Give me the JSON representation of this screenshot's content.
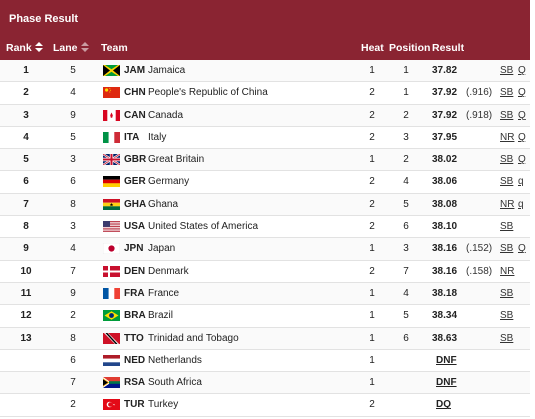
{
  "title": "Phase Result",
  "headers": {
    "rank": "Rank",
    "lane": "Lane",
    "team": "Team",
    "heat": "Heat",
    "position": "Position",
    "result": "Result"
  },
  "rows": [
    {
      "rank": "1",
      "lane": "5",
      "code": "JAM",
      "name": "Jamaica",
      "heat": "1",
      "pos": "1",
      "time": "37.82",
      "tie": "",
      "rec": "SB",
      "q": "Q",
      "flag": "jam"
    },
    {
      "rank": "2",
      "lane": "4",
      "code": "CHN",
      "name": "People's Republic of China",
      "heat": "2",
      "pos": "1",
      "time": "37.92",
      "tie": "(.916)",
      "rec": "SB",
      "q": "Q",
      "flag": "chn"
    },
    {
      "rank": "3",
      "lane": "9",
      "code": "CAN",
      "name": "Canada",
      "heat": "2",
      "pos": "2",
      "time": "37.92",
      "tie": "(.918)",
      "rec": "SB",
      "q": "Q",
      "flag": "can"
    },
    {
      "rank": "4",
      "lane": "5",
      "code": "ITA",
      "name": "Italy",
      "heat": "2",
      "pos": "3",
      "time": "37.95",
      "tie": "",
      "rec": "NR",
      "q": "Q",
      "flag": "ita"
    },
    {
      "rank": "5",
      "lane": "3",
      "code": "GBR",
      "name": "Great Britain",
      "heat": "1",
      "pos": "2",
      "time": "38.02",
      "tie": "",
      "rec": "SB",
      "q": "Q",
      "flag": "gbr"
    },
    {
      "rank": "6",
      "lane": "6",
      "code": "GER",
      "name": "Germany",
      "heat": "2",
      "pos": "4",
      "time": "38.06",
      "tie": "",
      "rec": "SB",
      "q": "q",
      "flag": "ger"
    },
    {
      "rank": "7",
      "lane": "8",
      "code": "GHA",
      "name": "Ghana",
      "heat": "2",
      "pos": "5",
      "time": "38.08",
      "tie": "",
      "rec": "NR",
      "q": "q",
      "flag": "gha"
    },
    {
      "rank": "8",
      "lane": "3",
      "code": "USA",
      "name": "United States of America",
      "heat": "2",
      "pos": "6",
      "time": "38.10",
      "tie": "",
      "rec": "SB",
      "q": "",
      "flag": "usa"
    },
    {
      "rank": "9",
      "lane": "4",
      "code": "JPN",
      "name": "Japan",
      "heat": "1",
      "pos": "3",
      "time": "38.16",
      "tie": "(.152)",
      "rec": "SB",
      "q": "Q",
      "flag": "jpn"
    },
    {
      "rank": "10",
      "lane": "7",
      "code": "DEN",
      "name": "Denmark",
      "heat": "2",
      "pos": "7",
      "time": "38.16",
      "tie": "(.158)",
      "rec": "NR",
      "q": "",
      "flag": "den"
    },
    {
      "rank": "11",
      "lane": "9",
      "code": "FRA",
      "name": "France",
      "heat": "1",
      "pos": "4",
      "time": "38.18",
      "tie": "",
      "rec": "SB",
      "q": "",
      "flag": "fra"
    },
    {
      "rank": "12",
      "lane": "2",
      "code": "BRA",
      "name": "Brazil",
      "heat": "1",
      "pos": "5",
      "time": "38.34",
      "tie": "",
      "rec": "SB",
      "q": "",
      "flag": "bra"
    },
    {
      "rank": "13",
      "lane": "8",
      "code": "TTO",
      "name": "Trinidad and Tobago",
      "heat": "1",
      "pos": "6",
      "time": "38.63",
      "tie": "",
      "rec": "SB",
      "q": "",
      "flag": "tto"
    },
    {
      "rank": "",
      "lane": "6",
      "code": "NED",
      "name": "Netherlands",
      "heat": "1",
      "pos": "",
      "result": "DNF",
      "flag": "ned"
    },
    {
      "rank": "",
      "lane": "7",
      "code": "RSA",
      "name": "South Africa",
      "heat": "1",
      "pos": "",
      "result": "DNF",
      "flag": "rsa"
    },
    {
      "rank": "",
      "lane": "2",
      "code": "TUR",
      "name": "Turkey",
      "heat": "2",
      "pos": "",
      "result": "DQ",
      "flag": "tur"
    }
  ]
}
